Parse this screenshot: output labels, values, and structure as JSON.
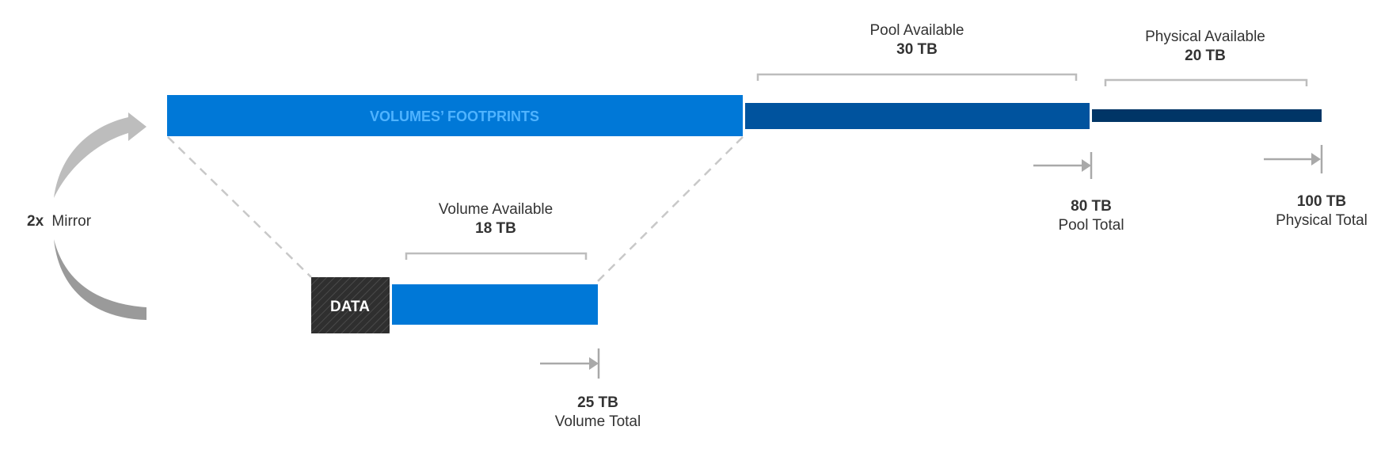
{
  "colors": {
    "volume_blue": "#0078D7",
    "pool_blue": "#00539E",
    "physical_navy": "#003566",
    "data_block": "#2f2f2f",
    "footprints_text": "#4fb3ff",
    "bracket_gray": "#bdbdbd",
    "dashed_gray": "#c8c8c8",
    "arrow_gray": "#a9a9a9",
    "text_dark": "#333333"
  },
  "mirror": {
    "factor": "2x",
    "label": "Mirror"
  },
  "footprints": {
    "label": "VOLUMES’ FOOTPRINTS"
  },
  "pool_available": {
    "title": "Pool Available",
    "value": "30 TB"
  },
  "physical_available": {
    "title": "Physical Available",
    "value": "20 TB"
  },
  "pool_total": {
    "value": "80 TB",
    "title": "Pool Total"
  },
  "physical_total": {
    "value": "100 TB",
    "title": "Physical Total"
  },
  "volume_available": {
    "title": "Volume Available",
    "value": "18 TB"
  },
  "data_block": {
    "label": "DATA"
  },
  "volume_total": {
    "value": "25 TB",
    "title": "Volume Total"
  }
}
